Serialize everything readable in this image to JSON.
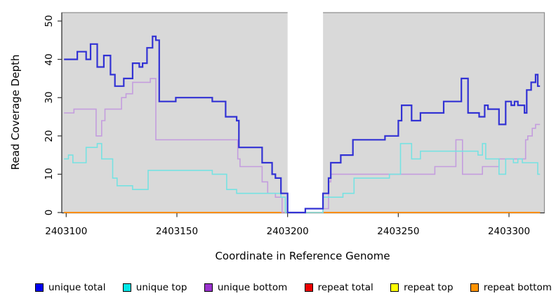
{
  "chart_data": {
    "type": "line",
    "step": true,
    "title": "",
    "xlabel": "Coordinate in Reference Genome",
    "ylabel": "Read Coverage Depth",
    "xlim": [
      2403098,
      2403316
    ],
    "ylim": [
      0,
      52
    ],
    "x_ticks": [
      2403100,
      2403150,
      2403200,
      2403250,
      2403300
    ],
    "y_ticks": [
      0,
      10,
      20,
      30,
      40,
      50
    ],
    "grid": false,
    "plot_background": "#d9d9d9",
    "masked_region": {
      "x0": 2403200,
      "x1": 2403216,
      "color": "#ffffff"
    },
    "legend_position": "bottom",
    "series": [
      {
        "name": "unique total",
        "line_color": "#3232d4",
        "marker_color": "#0000f0",
        "line_width": 2.2,
        "points": [
          [
            2403099,
            40
          ],
          [
            2403105,
            42
          ],
          [
            2403109,
            40
          ],
          [
            2403111,
            44
          ],
          [
            2403114,
            38
          ],
          [
            2403117,
            41
          ],
          [
            2403120,
            36
          ],
          [
            2403122,
            33
          ],
          [
            2403126,
            35
          ],
          [
            2403130,
            39
          ],
          [
            2403133,
            38
          ],
          [
            2403134.5,
            39
          ],
          [
            2403136.5,
            43
          ],
          [
            2403139,
            46
          ],
          [
            2403140.5,
            45
          ],
          [
            2403142,
            29
          ],
          [
            2403149.5,
            30
          ],
          [
            2403166,
            29
          ],
          [
            2403172,
            25
          ],
          [
            2403177,
            24
          ],
          [
            2403178,
            17
          ],
          [
            2403188.5,
            13
          ],
          [
            2403193,
            10
          ],
          [
            2403194.5,
            9
          ],
          [
            2403197,
            5
          ],
          [
            2403200,
            0
          ],
          [
            2403208,
            1
          ],
          [
            2403216,
            5
          ],
          [
            2403218.5,
            9
          ],
          [
            2403219.5,
            13
          ],
          [
            2403224,
            15
          ],
          [
            2403229.5,
            19
          ],
          [
            2403244,
            20
          ],
          [
            2403250,
            24
          ],
          [
            2403251.5,
            28
          ],
          [
            2403256,
            24
          ],
          [
            2403260,
            26
          ],
          [
            2403270.5,
            29
          ],
          [
            2403278.5,
            35
          ],
          [
            2403281.5,
            26
          ],
          [
            2403286.5,
            25
          ],
          [
            2403289,
            28
          ],
          [
            2403290.5,
            27
          ],
          [
            2403295.5,
            23
          ],
          [
            2403298.5,
            29
          ],
          [
            2403301,
            28
          ],
          [
            2403302.5,
            29
          ],
          [
            2403304,
            28
          ],
          [
            2403307,
            26
          ],
          [
            2403308,
            32
          ],
          [
            2403310,
            34
          ],
          [
            2403312,
            36
          ],
          [
            2403313,
            33
          ],
          [
            2403314,
            33
          ]
        ]
      },
      {
        "name": "unique top",
        "line_color": "#76e2e2",
        "marker_color": "#00e8e8",
        "line_width": 1.6,
        "points": [
          [
            2403099,
            14
          ],
          [
            2403101,
            15
          ],
          [
            2403103,
            13
          ],
          [
            2403109,
            17
          ],
          [
            2403114,
            18
          ],
          [
            2403116,
            14
          ],
          [
            2403121,
            9
          ],
          [
            2403123,
            7
          ],
          [
            2403130,
            6
          ],
          [
            2403137,
            11
          ],
          [
            2403166,
            10
          ],
          [
            2403172.5,
            6
          ],
          [
            2403177,
            5
          ],
          [
            2403197,
            4
          ],
          [
            2403199,
            0
          ],
          [
            2403216,
            4
          ],
          [
            2403225,
            5
          ],
          [
            2403230,
            9
          ],
          [
            2403246,
            10
          ],
          [
            2403251,
            18
          ],
          [
            2403256,
            14
          ],
          [
            2403260,
            16
          ],
          [
            2403286,
            15
          ],
          [
            2403288,
            18
          ],
          [
            2403289.5,
            14
          ],
          [
            2403295.5,
            10
          ],
          [
            2403298.5,
            14
          ],
          [
            2403302,
            13
          ],
          [
            2403304,
            14
          ],
          [
            2403306,
            13
          ],
          [
            2403313,
            10
          ],
          [
            2403314,
            10
          ]
        ]
      },
      {
        "name": "unique bottom",
        "line_color": "#c49dde",
        "marker_color": "#9a32cd",
        "line_width": 1.6,
        "points": [
          [
            2403099,
            26
          ],
          [
            2403103.5,
            27
          ],
          [
            2403113.5,
            20
          ],
          [
            2403116,
            24
          ],
          [
            2403117.5,
            27
          ],
          [
            2403125,
            30
          ],
          [
            2403127,
            31
          ],
          [
            2403130,
            34
          ],
          [
            2403138,
            35
          ],
          [
            2403140.5,
            19
          ],
          [
            2403177.5,
            14
          ],
          [
            2403178.5,
            12
          ],
          [
            2403188.5,
            8
          ],
          [
            2403191,
            5
          ],
          [
            2403194.5,
            4
          ],
          [
            2403197.5,
            0
          ],
          [
            2403216,
            1
          ],
          [
            2403218.5,
            8
          ],
          [
            2403219.5,
            10
          ],
          [
            2403266.5,
            12
          ],
          [
            2403276,
            19
          ],
          [
            2403279,
            10
          ],
          [
            2403288,
            12
          ],
          [
            2403295.5,
            14
          ],
          [
            2403307.5,
            19
          ],
          [
            2403308.5,
            20
          ],
          [
            2403310.5,
            22
          ],
          [
            2403312,
            23
          ],
          [
            2403314,
            23
          ]
        ]
      },
      {
        "name": "repeat total",
        "line_color": "#cc0000",
        "marker_color": "#ee0000",
        "line_width": 1.6,
        "points": [
          [
            2403099,
            0
          ],
          [
            2403314,
            0
          ]
        ]
      },
      {
        "name": "repeat top",
        "line_color": "#eeee00",
        "marker_color": "#ffff00",
        "line_width": 1.6,
        "points": [
          [
            2403099,
            0
          ],
          [
            2403314,
            0
          ]
        ]
      },
      {
        "name": "repeat bottom",
        "line_color": "#ff8c00",
        "marker_color": "#ff9400",
        "line_width": 1.8,
        "points": [
          [
            2403099,
            0
          ],
          [
            2403314,
            0
          ]
        ]
      }
    ],
    "legend": [
      {
        "label": "unique total",
        "marker_color": "#0000f0"
      },
      {
        "label": "unique top",
        "marker_color": "#00e8e8"
      },
      {
        "label": "unique bottom",
        "marker_color": "#9a32cd"
      },
      {
        "label": "repeat total",
        "marker_color": "#ee0000"
      },
      {
        "label": "repeat top",
        "marker_color": "#ffff00"
      },
      {
        "label": "repeat bottom",
        "marker_color": "#ff9400"
      }
    ]
  }
}
